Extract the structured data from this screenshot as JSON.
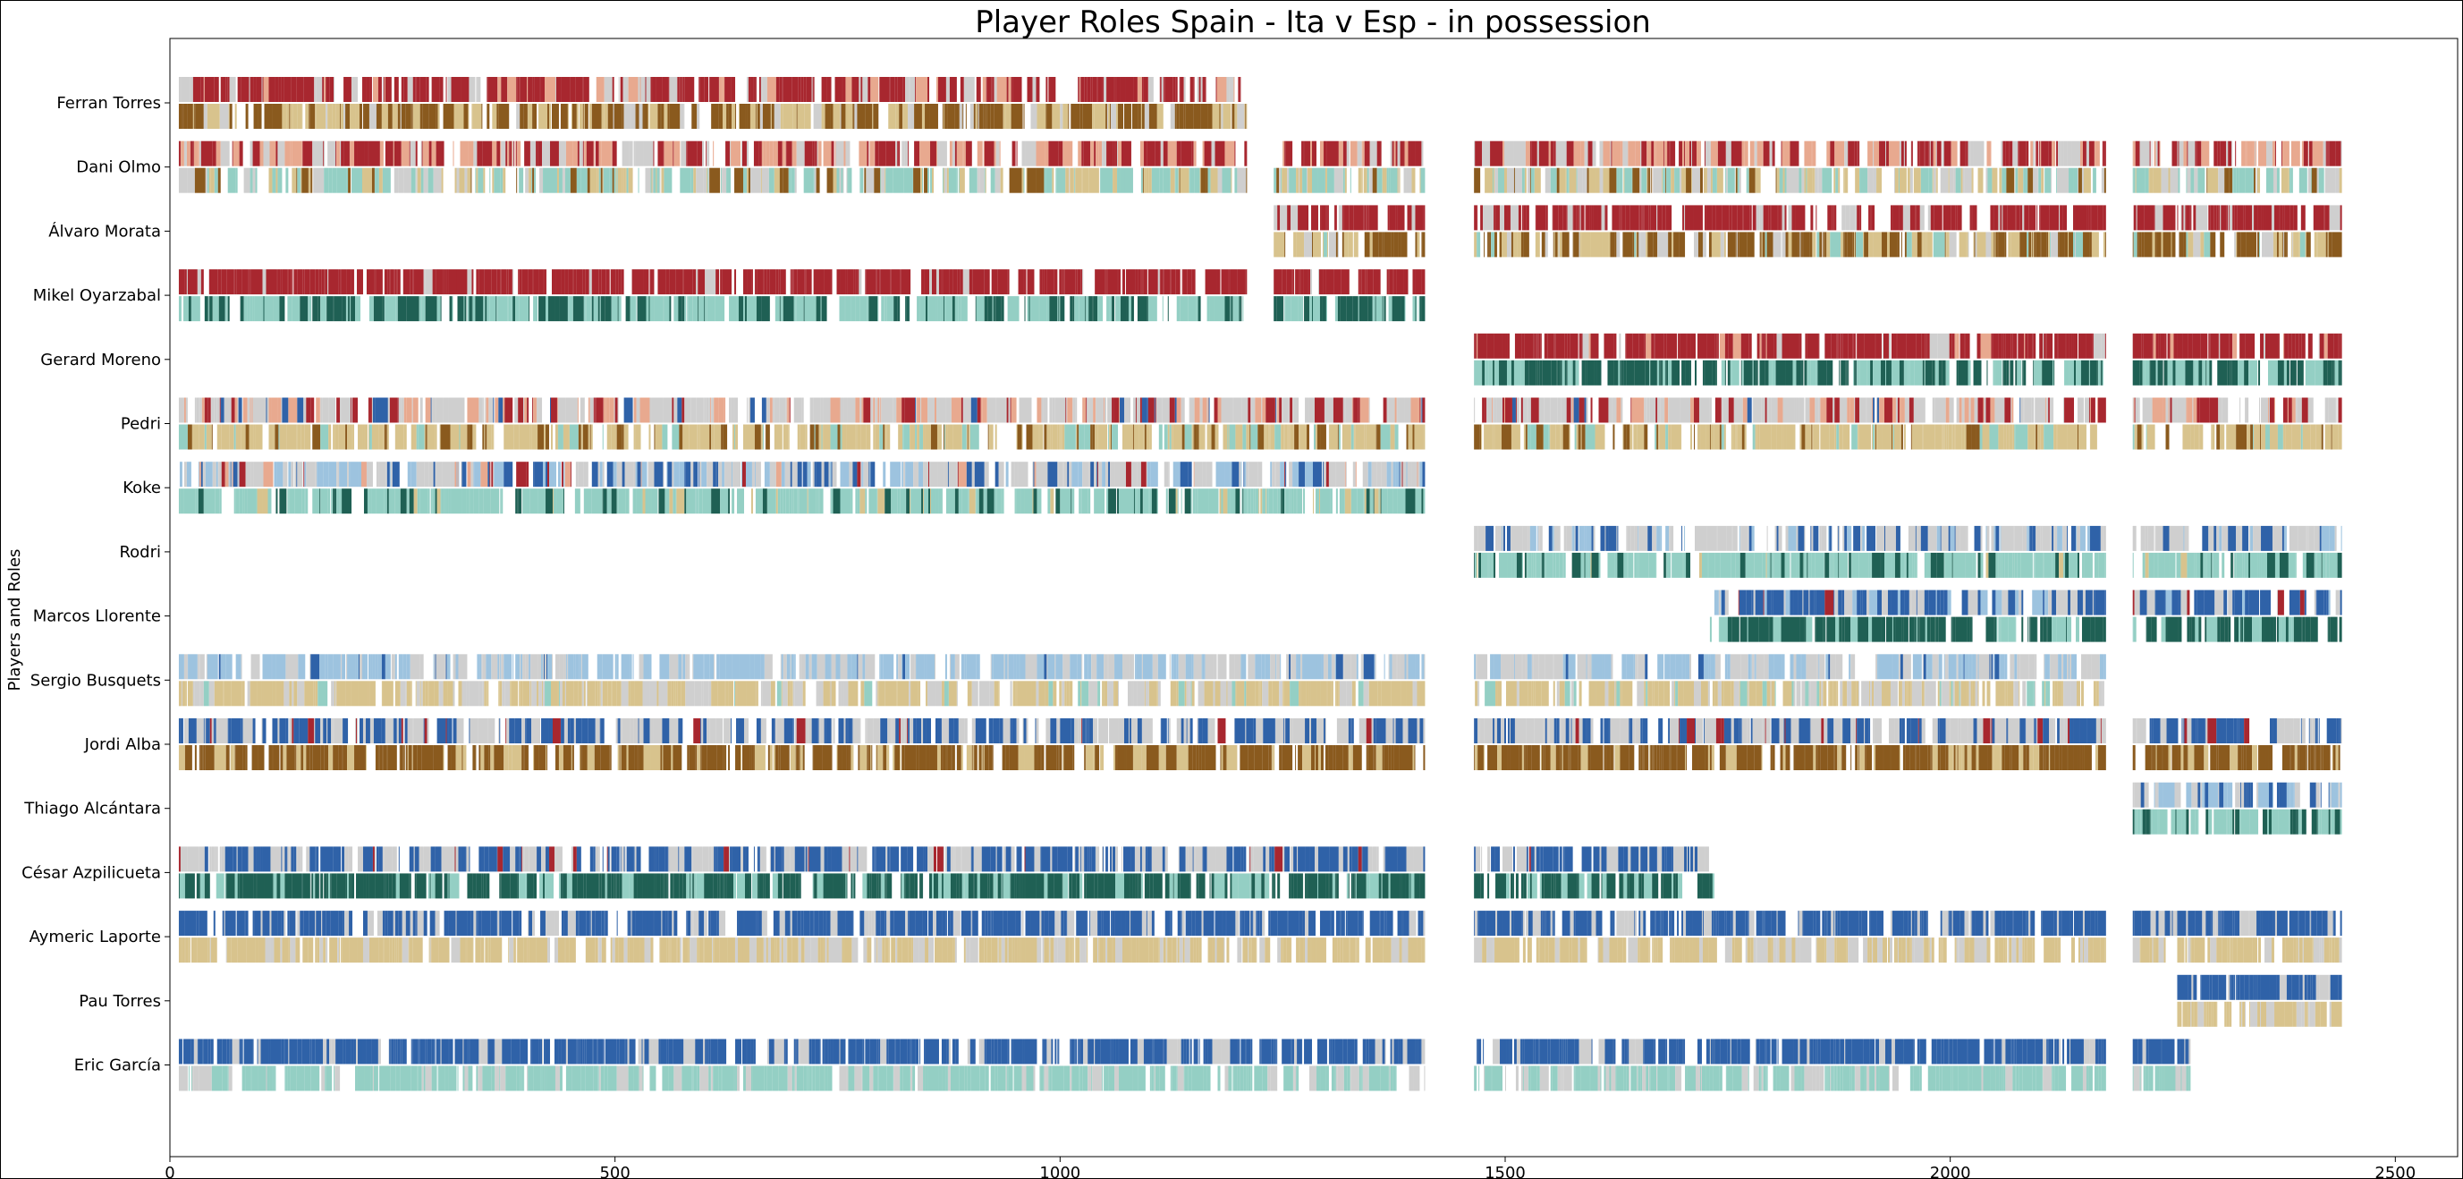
{
  "chart_data": {
    "type": "bar",
    "title": "Player Roles Spain - Ita v Esp - in possession",
    "ylabel": "Players and Roles",
    "xlabel": "",
    "xlim": [
      0,
      2570
    ],
    "xticks": [
      0,
      500,
      1000,
      1500,
      2000,
      2500
    ],
    "grid": false,
    "legend": "none",
    "players": [
      "Ferran Torres",
      "Dani Olmo",
      "Álvaro Morata",
      "Mikel Oyarzabal",
      "Gerard Moreno",
      "Pedri",
      "Koke",
      "Rodri",
      "Marcos Llorente",
      "Sergio Busquets",
      "Jordi Alba",
      "Thiago Alcántara",
      "César Azpilicueta",
      "Aymeric Laporte",
      "Pau Torres",
      "Eric García"
    ],
    "role_colors": {
      "red": "#a8272f",
      "salmon": "#e8a98f",
      "light_blue": "#9dc3df",
      "blue": "#2f62a8",
      "grey": "#cfcfcf",
      "sand": "#d8c38d",
      "brown": "#8a5a1e",
      "teal_light": "#94cfc4",
      "teal_dark": "#1f6054"
    },
    "rows": [
      {
        "player": "Ferran Torres",
        "segments": [
          [
            10,
            1210
          ]
        ],
        "top": {
          "red": 0.55,
          "grey": 0.15,
          "salmon": 0.1
        },
        "bottom": {
          "brown": 0.4,
          "sand": 0.3,
          "grey": 0.1
        }
      },
      {
        "player": "Dani Olmo",
        "segments": [
          [
            10,
            1210
          ],
          [
            1240,
            1410
          ],
          [
            1465,
            2175
          ],
          [
            2205,
            2440
          ]
        ],
        "top": {
          "red": 0.35,
          "salmon": 0.25,
          "grey": 0.2
        },
        "bottom": {
          "teal_light": 0.3,
          "sand": 0.25,
          "grey": 0.15,
          "brown": 0.1
        }
      },
      {
        "player": "Álvaro Morata",
        "segments": [
          [
            1240,
            1410
          ],
          [
            1465,
            2175
          ],
          [
            2205,
            2440
          ]
        ],
        "top": {
          "red": 0.7,
          "grey": 0.1
        },
        "bottom": {
          "brown": 0.4,
          "sand": 0.25,
          "grey": 0.1,
          "teal_light": 0.05
        }
      },
      {
        "player": "Mikel Oyarzabal",
        "segments": [
          [
            10,
            1210
          ],
          [
            1240,
            1410
          ]
        ],
        "top": {
          "red": 0.75,
          "grey": 0.05
        },
        "bottom": {
          "teal_light": 0.45,
          "teal_dark": 0.35
        }
      },
      {
        "player": "Gerard Moreno",
        "segments": [
          [
            1465,
            2175
          ],
          [
            2205,
            2440
          ]
        ],
        "top": {
          "red": 0.7,
          "salmon": 0.05,
          "grey": 0.05
        },
        "bottom": {
          "teal_dark": 0.5,
          "teal_light": 0.3
        }
      },
      {
        "player": "Pedri",
        "segments": [
          [
            10,
            1410
          ],
          [
            1465,
            2175
          ],
          [
            2205,
            2440
          ]
        ],
        "top": {
          "grey": 0.35,
          "salmon": 0.2,
          "red": 0.15,
          "blue": 0.05
        },
        "bottom": {
          "sand": 0.5,
          "brown": 0.15,
          "teal_light": 0.1
        }
      },
      {
        "player": "Koke",
        "segments": [
          [
            10,
            1410
          ]
        ],
        "top": {
          "grey": 0.35,
          "light_blue": 0.2,
          "blue": 0.15,
          "red": 0.08,
          "salmon": 0.05
        },
        "bottom": {
          "teal_light": 0.55,
          "teal_dark": 0.15,
          "sand": 0.08
        }
      },
      {
        "player": "Rodri",
        "segments": [
          [
            1465,
            2175
          ],
          [
            2205,
            2440
          ]
        ],
        "top": {
          "grey": 0.4,
          "light_blue": 0.2,
          "blue": 0.2
        },
        "bottom": {
          "teal_light": 0.55,
          "teal_dark": 0.2,
          "sand": 0.05
        }
      },
      {
        "player": "Marcos Llorente",
        "segments": [
          [
            1730,
            2175
          ],
          [
            2205,
            2440
          ]
        ],
        "top": {
          "blue": 0.45,
          "grey": 0.2,
          "light_blue": 0.1,
          "red": 0.05
        },
        "bottom": {
          "teal_dark": 0.55,
          "teal_light": 0.25
        }
      },
      {
        "player": "Sergio Busquets",
        "segments": [
          [
            10,
            1410
          ],
          [
            1465,
            2175
          ]
        ],
        "top": {
          "light_blue": 0.4,
          "grey": 0.35,
          "blue": 0.05
        },
        "bottom": {
          "sand": 0.45,
          "grey": 0.25,
          "teal_light": 0.1
        }
      },
      {
        "player": "Jordi Alba",
        "segments": [
          [
            10,
            1410
          ],
          [
            1465,
            2175
          ],
          [
            2205,
            2440
          ]
        ],
        "top": {
          "blue": 0.4,
          "grey": 0.35,
          "red": 0.05
        },
        "bottom": {
          "brown": 0.6,
          "sand": 0.2
        }
      },
      {
        "player": "Thiago Alcántara",
        "segments": [
          [
            2205,
            2440
          ]
        ],
        "top": {
          "blue": 0.3,
          "light_blue": 0.3,
          "grey": 0.2
        },
        "bottom": {
          "teal_light": 0.5,
          "teal_dark": 0.2
        }
      },
      {
        "player": "César Azpilicueta",
        "segments": [
          [
            10,
            1410
          ],
          [
            1465,
            1735
          ]
        ],
        "top": {
          "blue": 0.4,
          "grey": 0.35,
          "red": 0.05
        },
        "bottom": {
          "teal_dark": 0.6,
          "teal_light": 0.2
        }
      },
      {
        "player": "Aymeric Laporte",
        "segments": [
          [
            10,
            1410
          ],
          [
            1465,
            2175
          ],
          [
            2205,
            2440
          ]
        ],
        "top": {
          "blue": 0.65,
          "grey": 0.2
        },
        "bottom": {
          "sand": 0.6,
          "grey": 0.2
        }
      },
      {
        "player": "Pau Torres",
        "segments": [
          [
            2255,
            2440
          ]
        ],
        "top": {
          "blue": 0.75,
          "grey": 0.1
        },
        "bottom": {
          "sand": 0.6,
          "grey": 0.15
        }
      },
      {
        "player": "Eric García",
        "segments": [
          [
            10,
            1410
          ],
          [
            1465,
            2175
          ],
          [
            2205,
            2270
          ]
        ],
        "top": {
          "blue": 0.7,
          "grey": 0.15
        },
        "bottom": {
          "teal_light": 0.6,
          "grey": 0.2
        }
      }
    ]
  }
}
